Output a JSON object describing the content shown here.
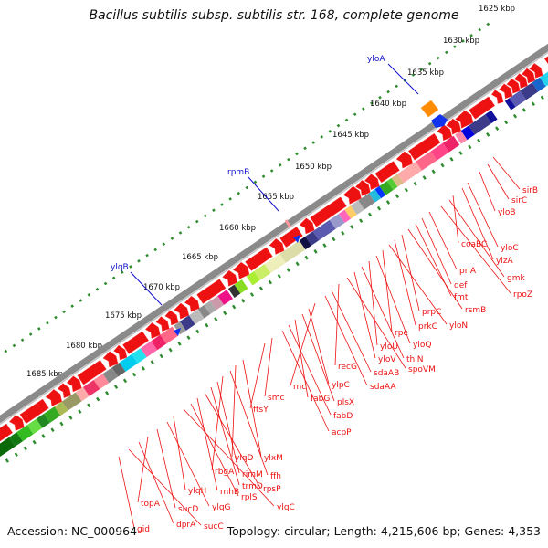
{
  "header": {
    "title": "Bacillus subtilis subsp. subtilis str. 168, complete genome"
  },
  "footer": {
    "accession": "Accession: NC_000964",
    "summary": "Topology: circular; Length: 4,215,606 bp; Genes: 4,353"
  },
  "map": {
    "ruler_labels": [
      "1625 kbp",
      "1630 kbp",
      "1635 kbp",
      "1640 kbp",
      "1645 kbp",
      "1650 kbp",
      "1655 kbp",
      "1660 kbp",
      "1665 kbp",
      "1670 kbp",
      "1675 kbp",
      "1680 kbp",
      "1685 kbp"
    ],
    "blue_gene_labels": [
      "yloA",
      "rpmB",
      "ylqB"
    ],
    "red_gene_labels": [
      "sirB",
      "sirC",
      "yloB",
      "yloC",
      "ylzA",
      "coaBC",
      "gmk",
      "rpoZ",
      "priA",
      "def",
      "fmt",
      "rsmB",
      "prpC",
      "prkC",
      "yloN",
      "rpe",
      "yloQ",
      "yloU",
      "thiN",
      "yloV",
      "spoVM",
      "recG",
      "sdaAB",
      "sdaAA",
      "rnc",
      "ylpC",
      "plsX",
      "fabG",
      "fabD",
      "acpP",
      "smc",
      "ftsY",
      "ylxM",
      "ylqD",
      "ffh",
      "rbgA",
      "rimM",
      "trmD",
      "rpsP",
      "rnhB",
      "rplS",
      "ylqC",
      "ylqH",
      "ylqG",
      "sucD",
      "topA",
      "dprA",
      "sucC",
      "gid"
    ]
  }
}
